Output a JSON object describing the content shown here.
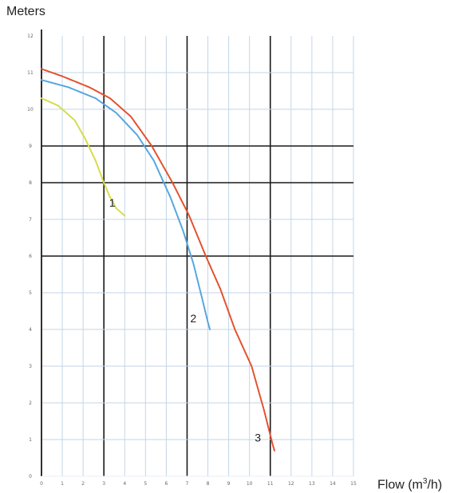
{
  "chart_data": {
    "type": "line",
    "ylabel": "Meters",
    "xlabel_base": "Flow (m",
    "xlabel_sup": "3",
    "xlabel_tail": "/h)",
    "xlim": [
      0,
      15
    ],
    "ylim": [
      0,
      12
    ],
    "x_ticks": [
      0,
      1,
      2,
      3,
      4,
      5,
      6,
      7,
      8,
      9,
      10,
      11,
      12,
      13,
      14,
      15
    ],
    "y_ticks": [
      0,
      1,
      2,
      3,
      4,
      5,
      6,
      7,
      8,
      9,
      10,
      11,
      12
    ],
    "series": [
      {
        "name": "1",
        "color": "#d6dc4a",
        "points": [
          [
            0,
            10.3
          ],
          [
            0.8,
            10.1
          ],
          [
            1.6,
            9.7
          ],
          [
            2.1,
            9.2
          ],
          [
            2.6,
            8.6
          ],
          [
            3.0,
            8.0
          ],
          [
            3.3,
            7.6
          ],
          [
            3.6,
            7.3
          ],
          [
            4.0,
            7.1
          ]
        ]
      },
      {
        "name": "2",
        "color": "#55a5df",
        "points": [
          [
            0,
            10.8
          ],
          [
            1.3,
            10.6
          ],
          [
            2.6,
            10.3
          ],
          [
            3.6,
            9.9
          ],
          [
            4.6,
            9.3
          ],
          [
            5.4,
            8.6
          ],
          [
            6.2,
            7.6
          ],
          [
            6.8,
            6.7
          ],
          [
            7.3,
            5.8
          ],
          [
            7.7,
            4.9
          ],
          [
            8.0,
            4.2
          ],
          [
            8.1,
            4.0
          ]
        ]
      },
      {
        "name": "3",
        "color": "#e4502c",
        "points": [
          [
            0,
            11.1
          ],
          [
            1.0,
            10.9
          ],
          [
            2.3,
            10.6
          ],
          [
            3.3,
            10.3
          ],
          [
            4.3,
            9.8
          ],
          [
            5.3,
            9.0
          ],
          [
            6.3,
            8.0
          ],
          [
            7.1,
            7.1
          ],
          [
            7.9,
            6.0
          ],
          [
            8.6,
            5.1
          ],
          [
            9.3,
            4.0
          ],
          [
            10.1,
            3.0
          ],
          [
            10.7,
            1.8
          ],
          [
            11.1,
            0.9
          ],
          [
            11.2,
            0.7
          ]
        ]
      }
    ],
    "curve_labels": [
      {
        "text": "1",
        "x": 3.4,
        "y": 7.35
      },
      {
        "text": "2",
        "x": 7.3,
        "y": 4.2
      },
      {
        "text": "3",
        "x": 10.4,
        "y": 0.95
      }
    ],
    "grid": true
  }
}
